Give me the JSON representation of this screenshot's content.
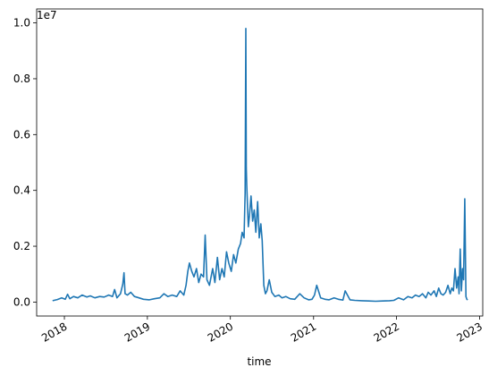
{
  "chart_data": {
    "type": "line",
    "title": "",
    "xlabel": "time",
    "ylabel": "",
    "y_offset_label": "1e7",
    "xlim": [
      "2017-09-01",
      "2023-01-15"
    ],
    "ylim": [
      -500000,
      10500000
    ],
    "grid": false,
    "x_tick_labels": [
      "2018",
      "2019",
      "2020",
      "2021",
      "2022",
      "2023"
    ],
    "y_tick_labels": [
      "0.0",
      "0.2",
      "0.4",
      "0.6",
      "0.8",
      "1.0"
    ],
    "y_tick_values": [
      0,
      2000000,
      4000000,
      6000000,
      8000000,
      10000000
    ],
    "color": "#1f77b4",
    "series": [
      {
        "x": [
          "2017-11-10",
          "2017-12-01",
          "2017-12-20",
          "2018-01-05",
          "2018-01-15",
          "2018-01-25",
          "2018-02-10",
          "2018-03-01",
          "2018-03-20",
          "2018-04-10",
          "2018-04-25",
          "2018-05-15",
          "2018-06-05",
          "2018-06-25",
          "2018-07-15",
          "2018-08-01",
          "2018-08-10",
          "2018-08-20",
          "2018-09-05",
          "2018-09-15",
          "2018-09-20",
          "2018-09-25",
          "2018-10-05",
          "2018-10-20",
          "2018-11-05",
          "2018-11-25",
          "2018-12-15",
          "2019-01-10",
          "2019-02-01",
          "2019-02-25",
          "2019-03-15",
          "2019-04-01",
          "2019-04-20",
          "2019-05-10",
          "2019-05-25",
          "2019-06-10",
          "2019-06-20",
          "2019-06-28",
          "2019-07-05",
          "2019-07-15",
          "2019-07-25",
          "2019-08-05",
          "2019-08-15",
          "2019-08-25",
          "2019-09-05",
          "2019-09-12",
          "2019-09-20",
          "2019-10-01",
          "2019-10-15",
          "2019-10-25",
          "2019-11-05",
          "2019-11-15",
          "2019-11-25",
          "2019-12-05",
          "2019-12-15",
          "2019-12-25",
          "2020-01-05",
          "2020-01-15",
          "2020-01-25",
          "2020-02-05",
          "2020-02-15",
          "2020-02-22",
          "2020-03-01",
          "2020-03-06",
          "2020-03-09",
          "2020-03-11",
          "2020-03-13",
          "2020-03-16",
          "2020-03-20",
          "2020-03-25",
          "2020-04-01",
          "2020-04-08",
          "2020-04-15",
          "2020-04-22",
          "2020-04-30",
          "2020-05-07",
          "2020-05-14",
          "2020-05-20",
          "2020-05-27",
          "2020-06-03",
          "2020-06-10",
          "2020-06-20",
          "2020-07-01",
          "2020-07-15",
          "2020-08-01",
          "2020-08-15",
          "2020-09-01",
          "2020-09-20",
          "2020-10-10",
          "2020-11-01",
          "2020-11-20",
          "2020-12-10",
          "2020-12-25",
          "2021-01-05",
          "2021-01-15",
          "2021-02-01",
          "2021-02-20",
          "2021-03-10",
          "2021-04-01",
          "2021-04-20",
          "2021-05-10",
          "2021-05-20",
          "2021-06-10",
          "2021-07-01",
          "2021-08-01",
          "2021-09-01",
          "2021-10-01",
          "2021-11-01",
          "2021-12-01",
          "2021-12-20",
          "2022-01-10",
          "2022-02-01",
          "2022-02-20",
          "2022-03-10",
          "2022-03-25",
          "2022-04-10",
          "2022-04-25",
          "2022-05-10",
          "2022-05-20",
          "2022-06-01",
          "2022-06-15",
          "2022-06-25",
          "2022-07-05",
          "2022-07-15",
          "2022-07-25",
          "2022-08-05",
          "2022-08-15",
          "2022-08-25",
          "2022-09-01",
          "2022-09-08",
          "2022-09-15",
          "2022-09-22",
          "2022-09-29",
          "2022-10-03",
          "2022-10-08",
          "2022-10-13",
          "2022-10-18",
          "2022-10-23",
          "2022-10-28",
          "2022-11-02",
          "2022-11-06",
          "2022-11-10"
        ],
        "y": [
          50000,
          90000,
          150000,
          100000,
          280000,
          120000,
          200000,
          150000,
          250000,
          180000,
          220000,
          150000,
          200000,
          180000,
          250000,
          200000,
          450000,
          150000,
          300000,
          650000,
          1050000,
          300000,
          250000,
          350000,
          200000,
          150000,
          100000,
          80000,
          120000,
          150000,
          300000,
          200000,
          250000,
          200000,
          400000,
          250000,
          600000,
          1100000,
          1400000,
          1100000,
          900000,
          1200000,
          700000,
          1000000,
          900000,
          2400000,
          800000,
          600000,
          1200000,
          700000,
          1600000,
          800000,
          1200000,
          900000,
          1800000,
          1400000,
          1100000,
          1700000,
          1400000,
          1900000,
          2100000,
          2500000,
          2300000,
          3900000,
          9800000,
          4800000,
          4200000,
          3500000,
          2700000,
          3100000,
          3800000,
          2900000,
          3300000,
          2500000,
          3600000,
          2300000,
          2800000,
          2200000,
          600000,
          300000,
          400000,
          800000,
          350000,
          200000,
          250000,
          150000,
          200000,
          120000,
          100000,
          300000,
          150000,
          80000,
          100000,
          250000,
          600000,
          150000,
          100000,
          80000,
          150000,
          100000,
          70000,
          400000,
          80000,
          60000,
          50000,
          40000,
          30000,
          40000,
          50000,
          60000,
          150000,
          80000,
          200000,
          150000,
          250000,
          200000,
          300000,
          150000,
          350000,
          250000,
          400000,
          200000,
          500000,
          300000,
          250000,
          350000,
          600000,
          300000,
          500000,
          400000,
          1200000,
          500000,
          900000,
          300000,
          1900000,
          400000,
          1200000,
          800000,
          3700000,
          200000,
          100000,
          80000
        ]
      }
    ]
  }
}
